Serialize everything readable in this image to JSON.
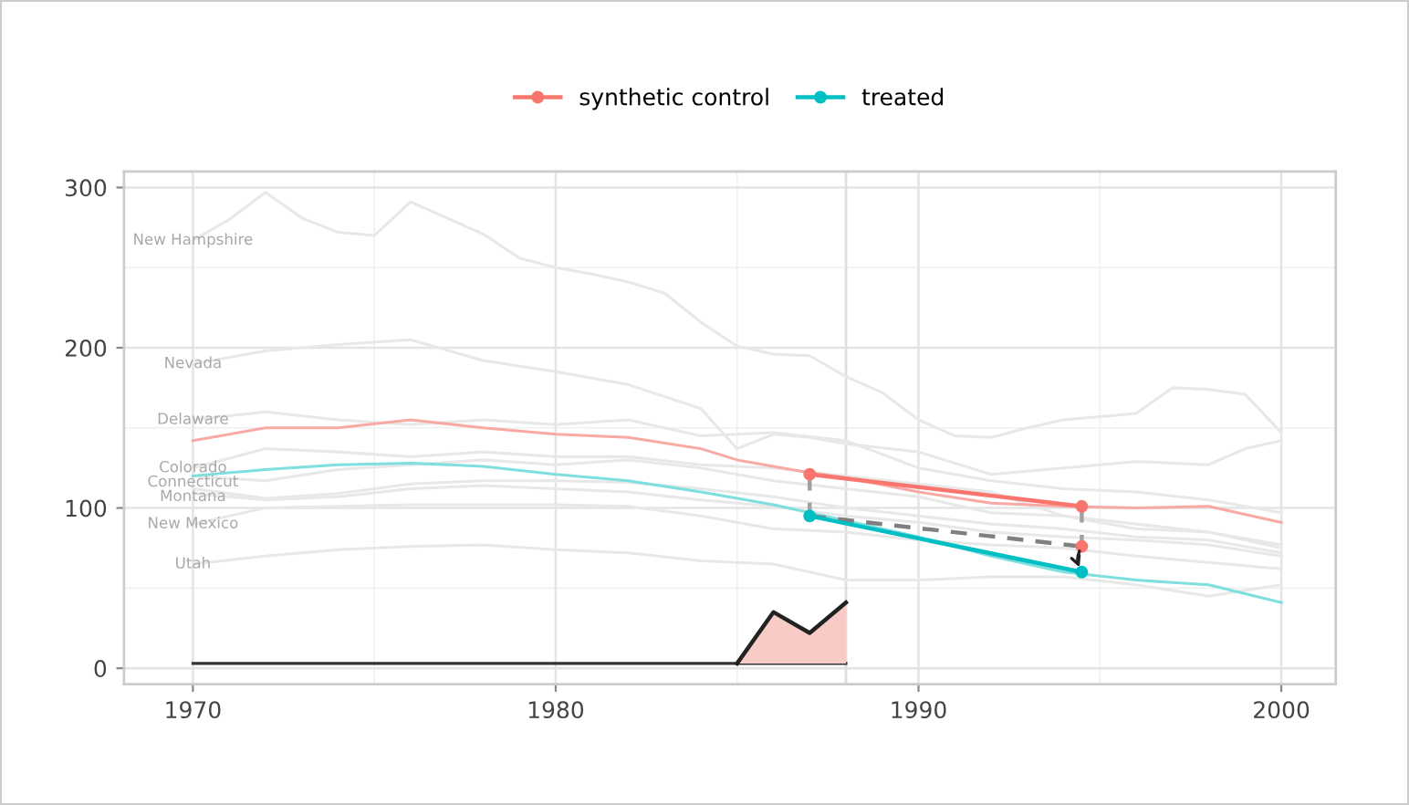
{
  "chart_data": {
    "type": "line",
    "xlim": [
      1968.1,
      2001.5
    ],
    "ylim": [
      -10,
      310
    ],
    "xticks": [
      1970,
      1980,
      1990,
      2000
    ],
    "yticks": [
      0,
      100,
      200,
      300
    ],
    "grid": true,
    "legend": "top",
    "line_style": "solid",
    "ref_lines": [
      {
        "axis": "x",
        "value": 1988,
        "color": "#dedede"
      }
    ],
    "series": [
      {
        "name": "New Hampshire",
        "color": "#e8e8e8",
        "x": [
          1970,
          1971,
          1972,
          1973,
          1974,
          1975,
          1976,
          1977,
          1978,
          1979,
          1980,
          1981,
          1982,
          1983,
          1984,
          1985,
          1986,
          1987,
          1988,
          1989,
          1990,
          1991,
          1992,
          1993,
          1994,
          1995,
          1996,
          1997,
          1998,
          1999,
          2000
        ],
        "values": [
          267,
          280,
          297,
          281,
          272,
          270,
          291,
          281,
          271,
          256,
          250,
          246,
          241,
          234,
          216,
          201,
          196,
          195,
          182,
          172,
          155,
          145,
          144,
          150,
          155,
          157,
          159,
          175,
          174,
          171,
          147
        ]
      },
      {
        "name": "Nevada",
        "color": "#e8e8e8",
        "x": [
          1970,
          1972,
          1974,
          1976,
          1978,
          1980,
          1982,
          1984,
          1985,
          1986,
          1987,
          1988,
          1990,
          1992,
          1994,
          1996,
          1998,
          1999,
          2000
        ],
        "values": [
          190,
          198,
          202,
          205,
          192,
          185,
          177,
          162,
          137,
          146,
          144,
          140,
          135,
          121,
          125,
          129,
          127,
          137,
          142
        ]
      },
      {
        "name": "Delaware",
        "color": "#e8e8e8",
        "x": [
          1970,
          1972,
          1974,
          1976,
          1978,
          1980,
          1982,
          1984,
          1986,
          1988,
          1990,
          1992,
          1994,
          1996,
          1998,
          2000
        ],
        "values": [
          155,
          160,
          155,
          152,
          155,
          152,
          155,
          145,
          147,
          142,
          125,
          117,
          112,
          110,
          105,
          97
        ]
      },
      {
        "name": "Colorado",
        "color": "#e8e8e8",
        "x": [
          1970,
          1972,
          1974,
          1976,
          1978,
          1980,
          1982,
          1984,
          1986,
          1988,
          1990,
          1992,
          1994,
          1996,
          1998,
          2000
        ],
        "values": [
          125,
          137,
          135,
          132,
          135,
          132,
          132,
          127,
          125,
          120,
          115,
          110,
          95,
          90,
          85,
          77
        ]
      },
      {
        "name": "Connecticut",
        "color": "#e8e8e8",
        "x": [
          1970,
          1972,
          1974,
          1976,
          1978,
          1980,
          1982,
          1984,
          1986,
          1988,
          1990,
          1992,
          1994,
          1996,
          1998,
          2000
        ],
        "values": [
          120,
          117,
          124,
          127,
          130,
          127,
          130,
          125,
          117,
          112,
          107,
          97,
          95,
          87,
          85,
          75
        ]
      },
      {
        "name": "Montana",
        "color": "#e8e8e8",
        "x": [
          1970,
          1972,
          1974,
          1976,
          1978,
          1980,
          1982,
          1984,
          1986,
          1988,
          1990,
          1992,
          1994,
          1996,
          1998,
          2000
        ],
        "values": [
          112,
          106,
          109,
          115,
          117,
          117,
          116,
          112,
          107,
          100,
          95,
          90,
          87,
          82,
          80,
          72
        ]
      },
      {
        "color": "#e8e8e8",
        "x": [
          1970,
          1972,
          1974,
          1976,
          1978,
          1980,
          1982,
          1984,
          1986,
          1988,
          1990,
          1992,
          1994,
          1996,
          1998,
          2000
        ],
        "values": [
          109,
          105,
          107,
          112,
          114,
          112,
          110,
          105,
          101,
          95,
          91,
          85,
          82,
          80,
          77,
          70
        ]
      },
      {
        "name": "New Mexico",
        "color": "#e8e8e8",
        "x": [
          1970,
          1972,
          1974,
          1976,
          1978,
          1980,
          1982,
          1984,
          1986,
          1988,
          1990,
          1992,
          1994,
          1996,
          1998,
          2000
        ],
        "values": [
          90,
          100,
          101,
          102,
          102,
          102,
          101,
          95,
          87,
          85,
          80,
          77,
          75,
          70,
          66,
          62
        ]
      },
      {
        "name": "Utah",
        "color": "#e8e8e8",
        "x": [
          1970,
          1972,
          1974,
          1976,
          1978,
          1980,
          1982,
          1984,
          1986,
          1988,
          1990,
          1992,
          1994,
          1996,
          1998,
          2000
        ],
        "values": [
          65,
          70,
          74,
          76,
          77,
          74,
          72,
          67,
          65,
          55,
          55,
          57,
          57,
          52,
          45,
          52
        ]
      },
      {
        "color": "#f8a9a4",
        "x": [
          1970,
          1972,
          1974,
          1976,
          1978,
          1980,
          1982,
          1984,
          1985,
          1986,
          1987,
          1988,
          1990,
          1992,
          1994,
          1996,
          1998,
          2000
        ],
        "values": [
          142,
          150,
          150,
          155,
          150,
          146,
          144,
          137,
          130,
          126,
          122,
          119,
          110,
          103,
          101,
          100,
          101,
          91
        ]
      },
      {
        "color": "#7fdede",
        "x": [
          1970,
          1972,
          1974,
          1976,
          1978,
          1980,
          1982,
          1984,
          1986,
          1987,
          1988,
          1990,
          1992,
          1994,
          1996,
          1998,
          2000
        ],
        "values": [
          120,
          124,
          127,
          128,
          126,
          121,
          117,
          110,
          102,
          97,
          92,
          82,
          70,
          60,
          55,
          52,
          41
        ]
      },
      {
        "color": "#a0a0a0",
        "line_style": "dashed",
        "x": [
          1987,
          1987
        ],
        "values": [
          121,
          95
        ]
      },
      {
        "color": "#a0a0a0",
        "line_style": "dashed",
        "x": [
          1994.5,
          1994.5
        ],
        "values": [
          101,
          76
        ]
      },
      {
        "color": "#808080",
        "line_style": "dashed",
        "x": [
          1987,
          1994.5
        ],
        "values": [
          95,
          76
        ]
      },
      {
        "name": "synthetic control",
        "color": "#f8766d",
        "marker": "circle",
        "x": [
          1987,
          1994.5
        ],
        "values": [
          121,
          101
        ]
      },
      {
        "name": "treated",
        "color": "#00bfc4",
        "marker": "circle",
        "x": [
          1987,
          1994.5
        ],
        "values": [
          95,
          60
        ]
      },
      {
        "type": "scatter",
        "color": "#f8766d",
        "x": [
          1994.5
        ],
        "values": [
          76
        ]
      },
      {
        "color": "#333333",
        "x": [
          1970,
          1988
        ],
        "values": [
          3,
          3
        ]
      },
      {
        "type": "area",
        "color": "#f9cbc7",
        "x": [
          1985,
          1986,
          1987,
          1988
        ],
        "values": [
          3,
          35,
          22,
          41
        ]
      }
    ]
  }
}
